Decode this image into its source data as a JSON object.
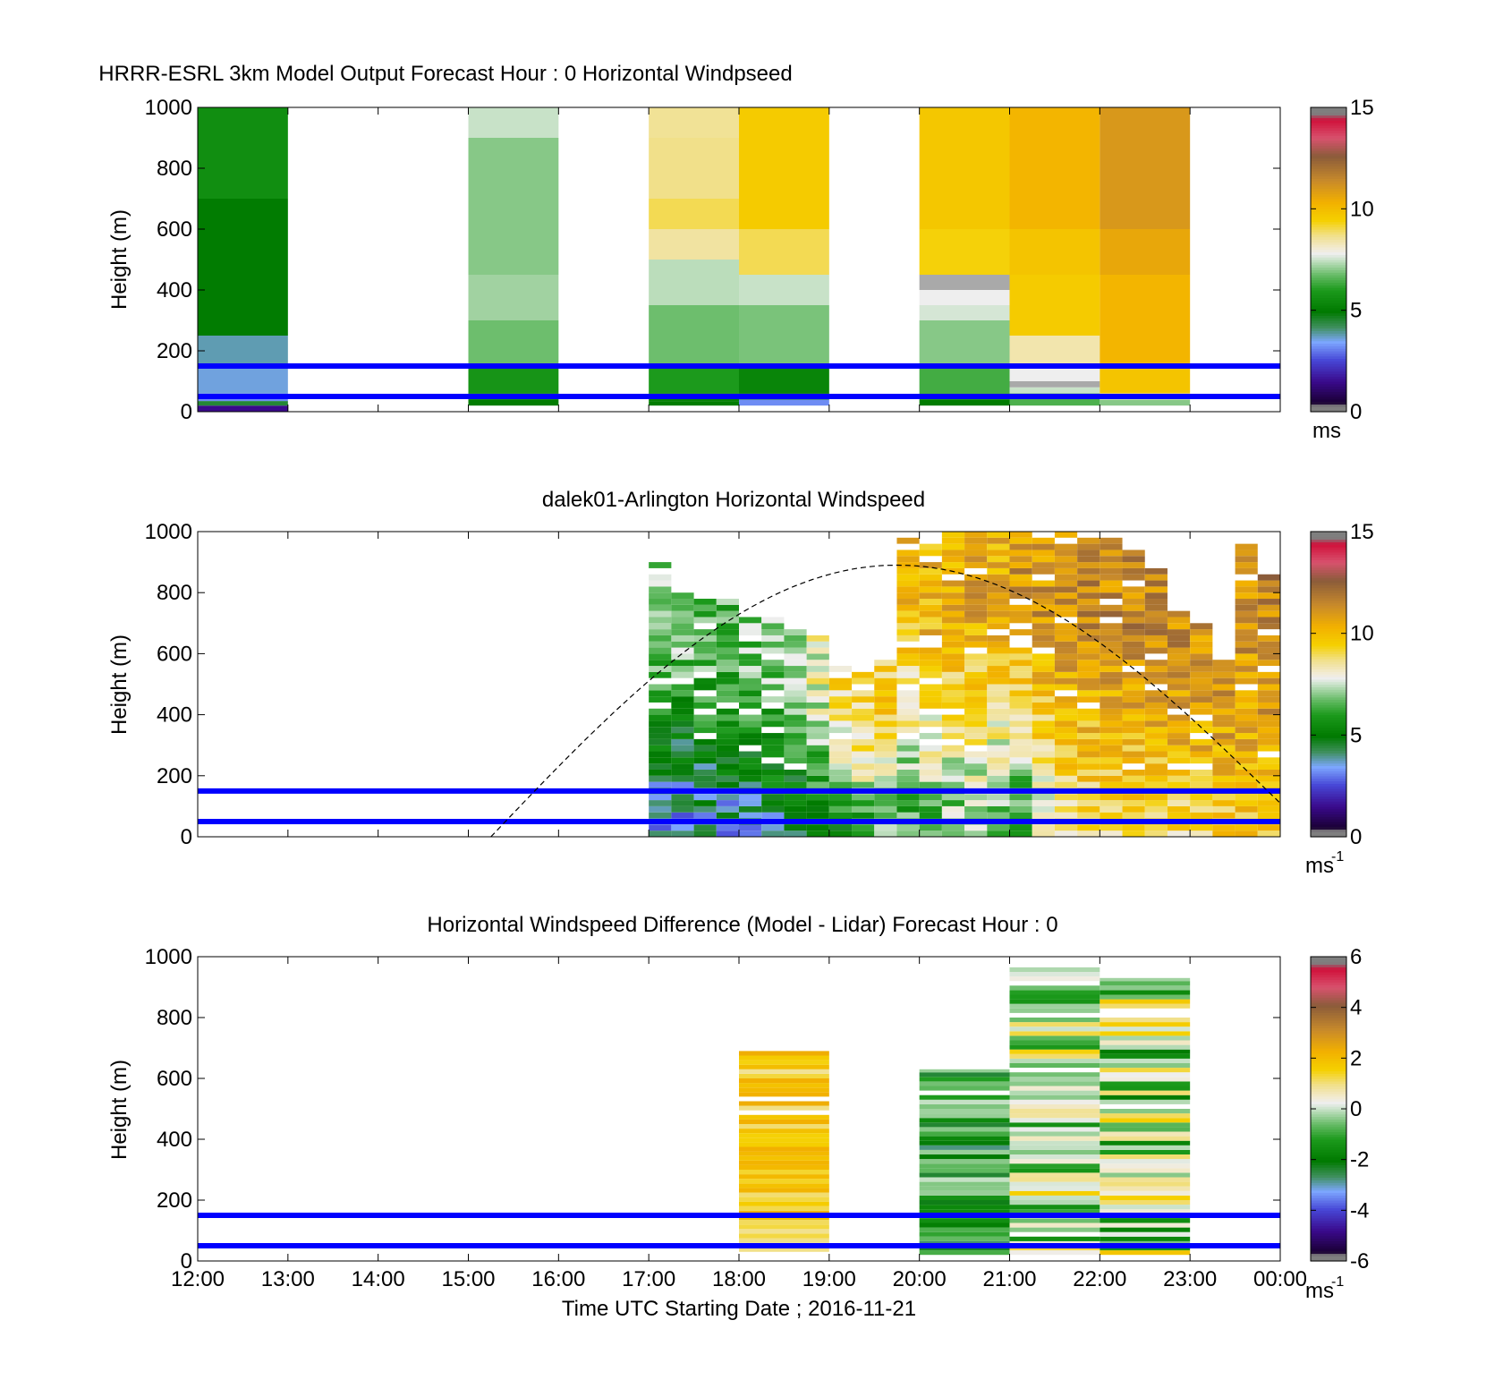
{
  "figure": {
    "xlabel": "Time UTC  Starting Date ; 2016-11-21",
    "x_ticks": [
      "12:00",
      "13:00",
      "14:00",
      "15:00",
      "16:00",
      "17:00",
      "18:00",
      "19:00",
      "20:00",
      "21:00",
      "22:00",
      "23:00",
      "00:00"
    ]
  },
  "chart_data": [
    {
      "type": "heatmap",
      "title": "HRRR-ESRL 3km Model Output   Forecast Hour : 0 Horizontal Windpseed",
      "ylabel": "Height (m)",
      "xlim_hours": [
        12,
        24
      ],
      "ylim": [
        0,
        1000
      ],
      "y_ticks": [
        "0",
        "200",
        "400",
        "600",
        "800",
        "1000"
      ],
      "colorbar": {
        "min": 0,
        "max": 15,
        "ticks": [
          "0",
          "5",
          "10",
          "15"
        ],
        "unit": "ms",
        "unit_sup": ""
      },
      "reference_lines_m": [
        50,
        150
      ],
      "reference_line_color": "#0000ff",
      "columns": [
        {
          "hour": "12:00",
          "levels": [
            [
              0,
              20,
              1.5
            ],
            [
              20,
              35,
              4.5
            ],
            [
              35,
              60,
              3.2
            ],
            [
              60,
              150,
              3.6
            ],
            [
              150,
              250,
              3.8
            ],
            [
              250,
              700,
              5.0
            ],
            [
              700,
              1000,
              5.6
            ]
          ]
        },
        {
          "hour": "15:00",
          "levels": [
            [
              20,
              40,
              5.0
            ],
            [
              40,
              60,
              5.3
            ],
            [
              60,
              150,
              5.8
            ],
            [
              150,
              300,
              6.8
            ],
            [
              300,
              450,
              7.2
            ],
            [
              450,
              900,
              7.0
            ],
            [
              900,
              1000,
              7.5
            ]
          ]
        },
        {
          "hour": "17:00",
          "levels": [
            [
              20,
              35,
              5.0
            ],
            [
              35,
              60,
              5.2
            ],
            [
              60,
              150,
              6.0
            ],
            [
              150,
              350,
              6.8
            ],
            [
              350,
              500,
              7.4
            ],
            [
              500,
              600,
              8.5
            ],
            [
              600,
              700,
              9.0
            ],
            [
              700,
              900,
              8.7
            ],
            [
              900,
              1000,
              8.6
            ]
          ]
        },
        {
          "hour": "18:00",
          "levels": [
            [
              20,
              40,
              3.2
            ],
            [
              40,
              60,
              5.0
            ],
            [
              60,
              150,
              5.3
            ],
            [
              150,
              350,
              6.9
            ],
            [
              350,
              450,
              7.5
            ],
            [
              450,
              600,
              9.0
            ],
            [
              600,
              1000,
              9.6
            ]
          ]
        },
        {
          "hour": "20:00",
          "levels": [
            [
              20,
              40,
              5.0
            ],
            [
              40,
              60,
              6.0
            ],
            [
              60,
              150,
              6.4
            ],
            [
              150,
              300,
              7.0
            ],
            [
              300,
              350,
              7.6
            ],
            [
              350,
              400,
              7.8
            ],
            [
              400,
              450,
              0.0
            ],
            [
              450,
              600,
              9.4
            ],
            [
              600,
              1000,
              9.7
            ]
          ]
        },
        {
          "hour": "21:00",
          "levels": [
            [
              20,
              60,
              6.5
            ],
            [
              60,
              80,
              7.5
            ],
            [
              80,
              100,
              0.0
            ],
            [
              100,
              150,
              7.8
            ],
            [
              150,
              250,
              8.4
            ],
            [
              250,
              450,
              9.6
            ],
            [
              450,
              600,
              9.8
            ],
            [
              600,
              1000,
              10.2
            ]
          ]
        },
        {
          "hour": "22:00",
          "levels": [
            [
              20,
              40,
              7.0
            ],
            [
              40,
              60,
              8.0
            ],
            [
              60,
              150,
              9.8
            ],
            [
              150,
              450,
              10.2
            ],
            [
              450,
              600,
              10.6
            ],
            [
              600,
              1000,
              11.0
            ]
          ]
        }
      ]
    },
    {
      "type": "heatmap",
      "title": "dalek01-Arlington  Horizontal Windspeed",
      "ylabel": "Height (m)",
      "xlim_hours": [
        12,
        24
      ],
      "ylim": [
        0,
        1000
      ],
      "y_ticks": [
        "0",
        "200",
        "400",
        "600",
        "800",
        "1000"
      ],
      "colorbar": {
        "min": 0,
        "max": 15,
        "ticks": [
          "0",
          "5",
          "10",
          "15"
        ],
        "unit": "ms",
        "unit_sup": "-1"
      },
      "reference_lines_m": [
        50,
        150
      ],
      "reference_line_color": "#0000ff",
      "time_bins": [
        {
          "start": 17.0,
          "top": 900,
          "low": 3.2,
          "high": 7.0
        },
        {
          "start": 17.25,
          "top": 800,
          "low": 3.0,
          "high": 6.8
        },
        {
          "start": 17.5,
          "top": 780,
          "low": 3.5,
          "high": 6.6
        },
        {
          "start": 17.75,
          "top": 780,
          "low": 3.4,
          "high": 6.5
        },
        {
          "start": 18.0,
          "top": 740,
          "low": 3.8,
          "high": 6.8
        },
        {
          "start": 18.25,
          "top": 720,
          "low": 3.9,
          "high": 7.0
        },
        {
          "start": 18.5,
          "top": 680,
          "low": 4.0,
          "high": 7.5
        },
        {
          "start": 18.75,
          "top": 650,
          "low": 5.0,
          "high": 8.0
        },
        {
          "start": 19.0,
          "top": 550,
          "low": 5.0,
          "high": 9.0
        },
        {
          "start": 19.25,
          "top": 530,
          "low": 6.0,
          "high": 9.2
        },
        {
          "start": 19.5,
          "top": 580,
          "low": 6.5,
          "high": 9.5
        },
        {
          "start": 19.75,
          "top": 980,
          "low": 6.0,
          "high": 10.0
        },
        {
          "start": 20.0,
          "top": 960,
          "low": 6.5,
          "high": 10.2
        },
        {
          "start": 20.25,
          "top": 1000,
          "low": 6.5,
          "high": 10.5
        },
        {
          "start": 20.5,
          "top": 1000,
          "low": 6.8,
          "high": 10.6
        },
        {
          "start": 20.75,
          "top": 1000,
          "low": 6.5,
          "high": 10.4
        },
        {
          "start": 21.0,
          "top": 1000,
          "low": 5.5,
          "high": 11.0
        },
        {
          "start": 21.25,
          "top": 990,
          "low": 7.5,
          "high": 11.0
        },
        {
          "start": 21.5,
          "top": 990,
          "low": 8.5,
          "high": 11.2
        },
        {
          "start": 21.75,
          "top": 980,
          "low": 8.8,
          "high": 11.3
        },
        {
          "start": 22.0,
          "top": 980,
          "low": 8.8,
          "high": 11.4
        },
        {
          "start": 22.25,
          "top": 960,
          "low": 8.8,
          "high": 11.5
        },
        {
          "start": 22.5,
          "top": 880,
          "low": 9.0,
          "high": 11.4
        },
        {
          "start": 22.75,
          "top": 740,
          "low": 9.0,
          "high": 11.2
        },
        {
          "start": 23.0,
          "top": 700,
          "low": 9.2,
          "high": 11.0
        },
        {
          "start": 23.25,
          "top": 600,
          "low": 9.4,
          "high": 11.0
        },
        {
          "start": 23.5,
          "top": 960,
          "low": 9.5,
          "high": 11.2
        },
        {
          "start": 23.75,
          "top": 860,
          "low": 9.5,
          "high": 11.5
        }
      ],
      "dashed_curve": {
        "type": "arc",
        "x_start_hour": 15.25,
        "x_peak_hour": 19.75,
        "x_end_hour": 24.0,
        "peak_height_m": 890,
        "end_height_m": 110
      }
    },
    {
      "type": "heatmap",
      "title": "Horizontal Windspeed Difference (Model - Lidar) Forecast Hour : 0",
      "ylabel": "Height (m)",
      "xlim_hours": [
        12,
        24
      ],
      "ylim": [
        0,
        1000
      ],
      "y_ticks": [
        "0",
        "200",
        "400",
        "600",
        "800",
        "1000"
      ],
      "colorbar": {
        "min": -6,
        "max": 6,
        "ticks": [
          "-6",
          "-4",
          "-2",
          "0",
          "2",
          "4",
          "6"
        ],
        "unit": "ms",
        "unit_sup": "-1"
      },
      "reference_lines_m": [
        50,
        150
      ],
      "reference_line_color": "#0000ff",
      "columns": [
        {
          "hour": "18:00",
          "bottom": 30,
          "top": 690,
          "low": 0.8,
          "high": 2.4
        },
        {
          "hour": "20:00",
          "bottom": 20,
          "top": 630,
          "low": -2.8,
          "high": 0.0
        },
        {
          "hour": "21:00",
          "bottom": 20,
          "top": 980,
          "low": -1.5,
          "high": 1.6
        },
        {
          "hour": "22:00",
          "bottom": 20,
          "top": 930,
          "low": -2.0,
          "high": 1.8
        }
      ]
    }
  ]
}
